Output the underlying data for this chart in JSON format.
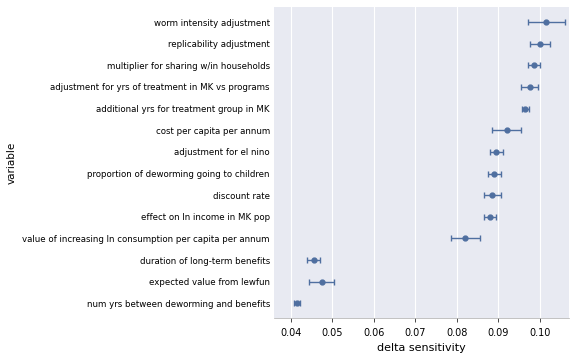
{
  "variables": [
    "worm intensity adjustment",
    "replicability adjustment",
    "multiplier for sharing w/in households",
    "adjustment for yrs of treatment in MK vs programs",
    "additional yrs for treatment group in MK",
    "cost per capita per annum",
    "adjustment for el nino",
    "proportion of deworming going to children",
    "discount rate",
    "effect on ln income in MK pop",
    "value of increasing ln consumption per capita per annum",
    "duration of long-term benefits",
    "expected value from lewfun",
    "num yrs between deworming and benefits"
  ],
  "centers": [
    0.1015,
    0.1,
    0.0985,
    0.0975,
    0.0965,
    0.092,
    0.0895,
    0.089,
    0.0885,
    0.088,
    0.082,
    0.0455,
    0.0475,
    0.0415
  ],
  "xerr_low": [
    0.0045,
    0.0025,
    0.0015,
    0.002,
    0.0008,
    0.0035,
    0.0015,
    0.0015,
    0.002,
    0.0015,
    0.0035,
    0.0015,
    0.003,
    0.0008
  ],
  "xerr_high": [
    0.0045,
    0.0025,
    0.0015,
    0.002,
    0.0008,
    0.0035,
    0.0015,
    0.0015,
    0.002,
    0.0015,
    0.0035,
    0.0015,
    0.003,
    0.0008
  ],
  "dot_color": "#4f6fa0",
  "line_color": "#4f6fa0",
  "bg_color": "#e8eaf2",
  "fig_bg_color": "#ffffff",
  "ylabel": "variable",
  "xlabel": "delta sensitivity",
  "xlim": [
    0.036,
    0.107
  ],
  "xticks": [
    0.04,
    0.05,
    0.06,
    0.07,
    0.08,
    0.09,
    0.1
  ],
  "xtick_labels": [
    "0.04",
    "0.05",
    "0.06",
    "0.07",
    "0.08",
    "0.09",
    "0.10"
  ],
  "ylabel_fontsize": 7.5,
  "xlabel_fontsize": 8,
  "ytick_fontsize": 6.2,
  "xtick_fontsize": 7
}
